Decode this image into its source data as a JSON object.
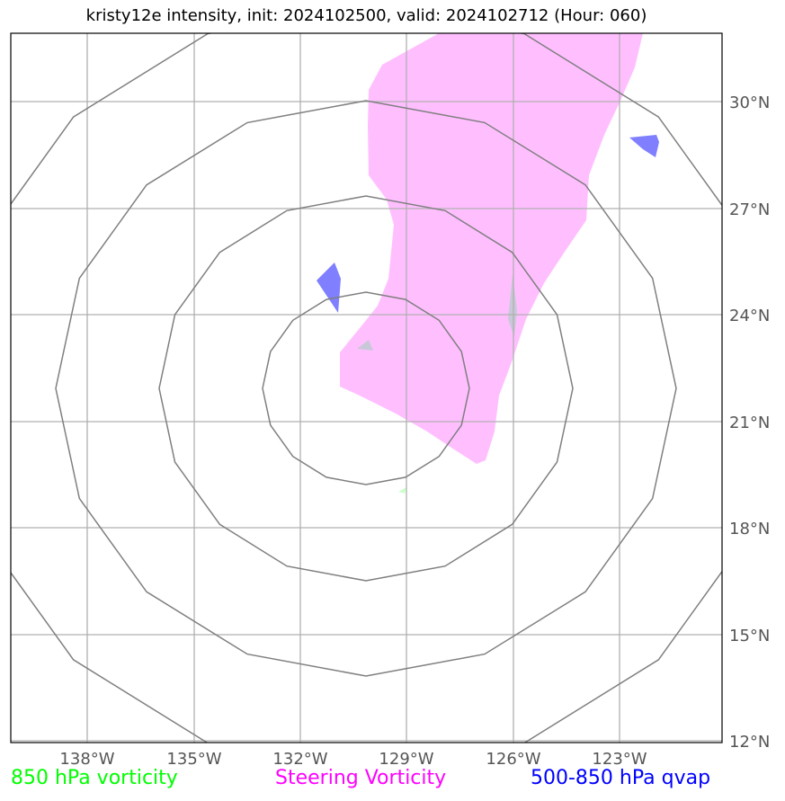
{
  "title": "kristy12e intensity, init: 2024102500, valid: 2024102712 (Hour: 060)",
  "x_ticks": [
    "138°W",
    "135°W",
    "132°W",
    "129°W",
    "126°W",
    "123°W"
  ],
  "y_ticks": [
    "30°N",
    "27°N",
    "24°N",
    "21°N",
    "18°N",
    "15°N",
    "12°N"
  ],
  "legend": [
    {
      "label": "850 hPa vorticity",
      "color": "#00ff00"
    },
    {
      "label": "Steering Vorticity",
      "color": "#ff00ff"
    },
    {
      "label": "500-850 hPa qvap",
      "color": "#0000ff"
    }
  ],
  "colors": {
    "steering_fill": "#ffbfff",
    "qvap_fill": "#7f7fff",
    "gray_patch": "#c8c8d8",
    "range_rings": "#7f7f7f",
    "gridlines": "#b0b0b0"
  }
}
